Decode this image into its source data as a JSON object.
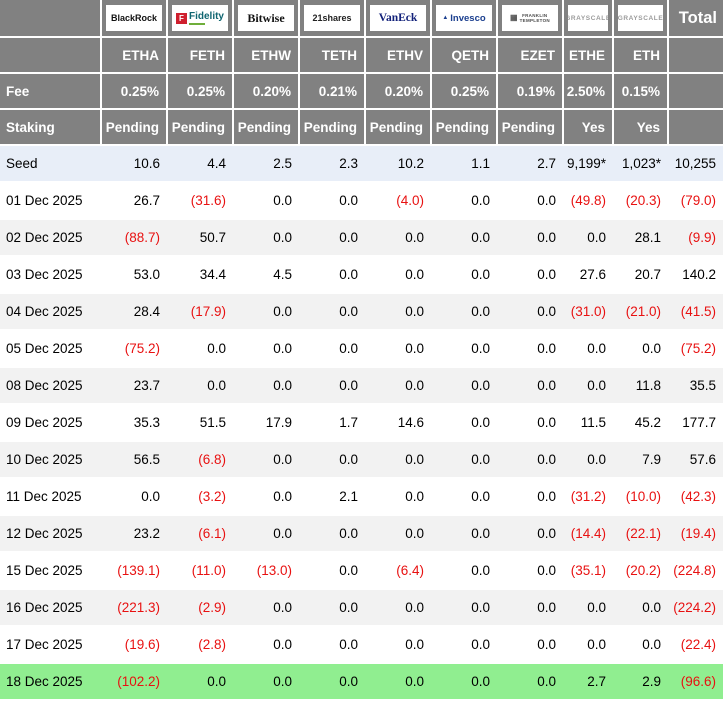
{
  "table": {
    "total_header": "Total",
    "labels": {
      "fee": "Fee",
      "staking": "Staking"
    },
    "providers": [
      {
        "name": "BlackRock",
        "ticker": "ETHA",
        "fee": "0.25%",
        "staking": "Pending",
        "logo_style": "blackrock",
        "logo_text": "BlackRock"
      },
      {
        "name": "Fidelity",
        "ticker": "FETH",
        "fee": "0.25%",
        "staking": "Pending",
        "logo_style": "fidelity",
        "logo_icon_text": "F",
        "logo_text": "Fidelity"
      },
      {
        "name": "Bitwise",
        "ticker": "ETHW",
        "fee": "0.20%",
        "staking": "Pending",
        "logo_style": "bitwise",
        "logo_text": "Bitwise"
      },
      {
        "name": "21shares",
        "ticker": "TETH",
        "fee": "0.21%",
        "staking": "Pending",
        "logo_style": "shares21",
        "logo_text": "21shares"
      },
      {
        "name": "VanEck",
        "ticker": "ETHV",
        "fee": "0.20%",
        "staking": "Pending",
        "logo_style": "vaneck",
        "logo_text": "VanEck"
      },
      {
        "name": "Invesco",
        "ticker": "QETH",
        "fee": "0.25%",
        "staking": "Pending",
        "logo_style": "invesco",
        "logo_text": "Invesco"
      },
      {
        "name": "Franklin Templeton",
        "ticker": "EZET",
        "fee": "0.19%",
        "staking": "Pending",
        "logo_style": "franklin",
        "logo_lines": [
          "FRANKLIN",
          "TEMPLETON"
        ]
      },
      {
        "name": "Grayscale",
        "ticker": "ETHE",
        "fee": "2.50%",
        "staking": "Yes",
        "logo_style": "grayscale",
        "logo_text": "GRAYSCALE"
      },
      {
        "name": "Grayscale",
        "ticker": "ETH",
        "fee": "0.15%",
        "staking": "Yes",
        "logo_style": "grayscale",
        "logo_text": "GRAYSCALE"
      }
    ],
    "seed_row": {
      "label": "Seed",
      "values": [
        "10.6",
        "4.4",
        "2.5",
        "2.3",
        "10.2",
        "1.1",
        "2.7",
        "9,199*",
        "1,023*"
      ],
      "total": "10,255"
    },
    "rows": [
      {
        "date": "01 Dec 2025",
        "values": [
          "26.7",
          "(31.6)",
          "0.0",
          "0.0",
          "(4.0)",
          "0.0",
          "0.0",
          "(49.8)",
          "(20.3)"
        ],
        "total": "(79.0)"
      },
      {
        "date": "02 Dec 2025",
        "values": [
          "(88.7)",
          "50.7",
          "0.0",
          "0.0",
          "0.0",
          "0.0",
          "0.0",
          "0.0",
          "28.1"
        ],
        "total": "(9.9)"
      },
      {
        "date": "03 Dec 2025",
        "values": [
          "53.0",
          "34.4",
          "4.5",
          "0.0",
          "0.0",
          "0.0",
          "0.0",
          "27.6",
          "20.7"
        ],
        "total": "140.2"
      },
      {
        "date": "04 Dec 2025",
        "values": [
          "28.4",
          "(17.9)",
          "0.0",
          "0.0",
          "0.0",
          "0.0",
          "0.0",
          "(31.0)",
          "(21.0)"
        ],
        "total": "(41.5)"
      },
      {
        "date": "05 Dec 2025",
        "values": [
          "(75.2)",
          "0.0",
          "0.0",
          "0.0",
          "0.0",
          "0.0",
          "0.0",
          "0.0",
          "0.0"
        ],
        "total": "(75.2)"
      },
      {
        "date": "08 Dec 2025",
        "values": [
          "23.7",
          "0.0",
          "0.0",
          "0.0",
          "0.0",
          "0.0",
          "0.0",
          "0.0",
          "11.8"
        ],
        "total": "35.5"
      },
      {
        "date": "09 Dec 2025",
        "values": [
          "35.3",
          "51.5",
          "17.9",
          "1.7",
          "14.6",
          "0.0",
          "0.0",
          "11.5",
          "45.2"
        ],
        "total": "177.7"
      },
      {
        "date": "10 Dec 2025",
        "values": [
          "56.5",
          "(6.8)",
          "0.0",
          "0.0",
          "0.0",
          "0.0",
          "0.0",
          "0.0",
          "7.9"
        ],
        "total": "57.6"
      },
      {
        "date": "11 Dec 2025",
        "values": [
          "0.0",
          "(3.2)",
          "0.0",
          "2.1",
          "0.0",
          "0.0",
          "0.0",
          "(31.2)",
          "(10.0)"
        ],
        "total": "(42.3)"
      },
      {
        "date": "12 Dec 2025",
        "values": [
          "23.2",
          "(6.1)",
          "0.0",
          "0.0",
          "0.0",
          "0.0",
          "0.0",
          "(14.4)",
          "(22.1)"
        ],
        "total": "(19.4)"
      },
      {
        "date": "15 Dec 2025",
        "values": [
          "(139.1)",
          "(11.0)",
          "(13.0)",
          "0.0",
          "(6.4)",
          "0.0",
          "0.0",
          "(35.1)",
          "(20.2)"
        ],
        "total": "(224.8)"
      },
      {
        "date": "16 Dec 2025",
        "values": [
          "(221.3)",
          "(2.9)",
          "0.0",
          "0.0",
          "0.0",
          "0.0",
          "0.0",
          "0.0",
          "0.0"
        ],
        "total": "(224.2)"
      },
      {
        "date": "17 Dec 2025",
        "values": [
          "(19.6)",
          "(2.8)",
          "0.0",
          "0.0",
          "0.0",
          "0.0",
          "0.0",
          "0.0",
          "0.0"
        ],
        "total": "(22.4)"
      },
      {
        "date": "18 Dec 2025",
        "values": [
          "(102.2)",
          "0.0",
          "0.0",
          "0.0",
          "0.0",
          "0.0",
          "0.0",
          "2.7",
          "2.9"
        ],
        "total": "(96.6)",
        "highlight": "green"
      }
    ]
  },
  "colors": {
    "header_bg": "#818181",
    "header_text": "#ffffff",
    "alt_row_bg": "#f2f2f2",
    "seed_row_bg": "#e8eef8",
    "highlight_green": "#90ee90",
    "negative_text": "#e81111"
  }
}
